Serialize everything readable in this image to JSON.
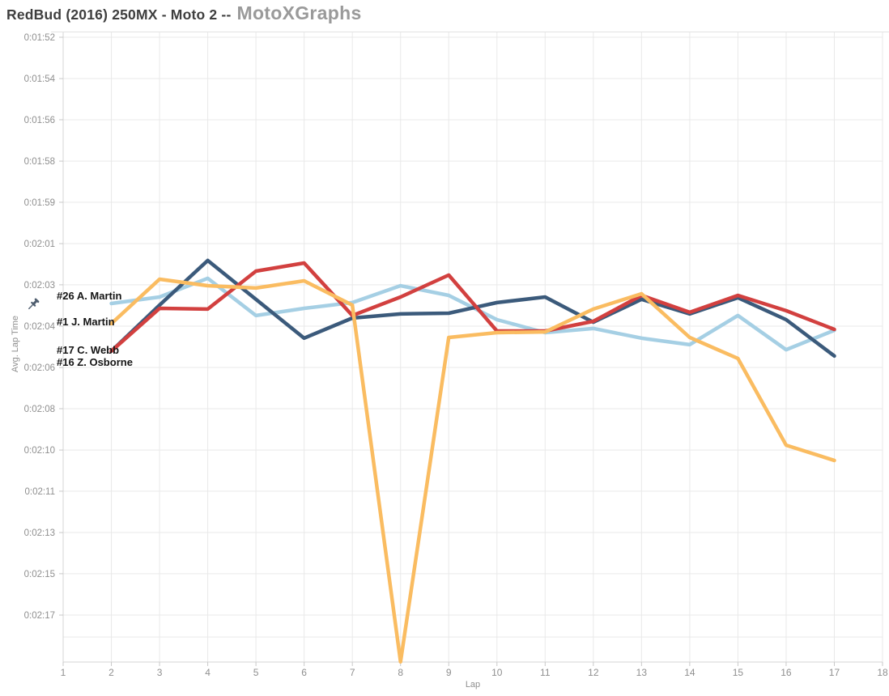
{
  "header": {
    "title": "RedBud (2016) 250MX - Moto 2 --",
    "brand": "MotoXGraphs"
  },
  "chart_data": {
    "type": "line",
    "title": "RedBud (2016) 250MX - Moto 2 -- MotoXGraphs",
    "xlabel": "Lap",
    "ylabel": "Avg. Lap Time",
    "x_ticks": [
      1,
      2,
      3,
      4,
      5,
      6,
      7,
      8,
      9,
      10,
      11,
      12,
      13,
      14,
      15,
      16,
      17,
      18
    ],
    "x_range": [
      1,
      18
    ],
    "y_axis_direction": "down",
    "y_range_s": [
      111.8,
      139.05
    ],
    "y_ticks": [
      {
        "label": "0:01:52",
        "s": 112.0
      },
      {
        "label": "0:01:54",
        "s": 113.79
      },
      {
        "label": "0:01:56",
        "s": 115.57
      },
      {
        "label": "0:01:58",
        "s": 117.36
      },
      {
        "label": "0:01:59",
        "s": 119.14
      },
      {
        "label": "0:02:01",
        "s": 120.93
      },
      {
        "label": "0:02:03",
        "s": 122.71
      },
      {
        "label": "0:02:04",
        "s": 124.5
      },
      {
        "label": "0:02:06",
        "s": 126.29
      },
      {
        "label": "0:02:08",
        "s": 128.07
      },
      {
        "label": "0:02:10",
        "s": 129.86
      },
      {
        "label": "0:02:11",
        "s": 131.64
      },
      {
        "label": "0:02:13",
        "s": 133.43
      },
      {
        "label": "0:02:15",
        "s": 135.21
      },
      {
        "label": "0:02:17",
        "s": 137.0
      }
    ],
    "extra_unlabeled_gridline_s": 137.95,
    "laps": [
      2,
      3,
      4,
      5,
      6,
      7,
      8,
      9,
      10,
      11,
      12,
      13,
      14,
      15,
      16,
      17
    ],
    "series": [
      {
        "name": "#26 A. Martin",
        "color": "#a5cfe4",
        "avg_lap_time_s": [
          123.52,
          123.24,
          122.43,
          124.04,
          123.73,
          123.48,
          122.75,
          123.17,
          124.22,
          124.78,
          124.6,
          125.02,
          125.3,
          124.04,
          125.52,
          124.68
        ]
      },
      {
        "name": "#1 J. Martin",
        "color": "#fabc61",
        "avg_lap_time_s": [
          124.39,
          122.47,
          122.75,
          122.85,
          122.54,
          123.59,
          139.02,
          124.99,
          124.78,
          124.75,
          123.76,
          123.1,
          124.99,
          125.9,
          129.65,
          130.31
        ]
      },
      {
        "name": "#17 C. Webb",
        "color": "#d2403f",
        "avg_lap_time_s": [
          125.58,
          123.73,
          123.76,
          122.12,
          121.77,
          124.04,
          123.24,
          122.29,
          124.71,
          124.71,
          124.29,
          123.17,
          123.9,
          123.17,
          123.83,
          124.64
        ]
      },
      {
        "name": "#16 Z. Osborne",
        "color": "#3b5a7b",
        "avg_lap_time_s": [
          125.58,
          123.59,
          121.66,
          123.34,
          125.02,
          124.15,
          123.97,
          123.94,
          123.48,
          123.24,
          124.33,
          123.34,
          123.97,
          123.27,
          124.22,
          125.79
        ]
      }
    ],
    "legend_position": "left of first data point, stacked labels",
    "grid": true
  },
  "colors": {
    "grid": "#e9e9e9",
    "axis_line": "#d4d4d4",
    "tick_mark": "#c9c9c9",
    "tick_text": "#8f8f8f",
    "axis_title_text": "#8f8f8f",
    "pin_icon": "#4e5d6e"
  }
}
